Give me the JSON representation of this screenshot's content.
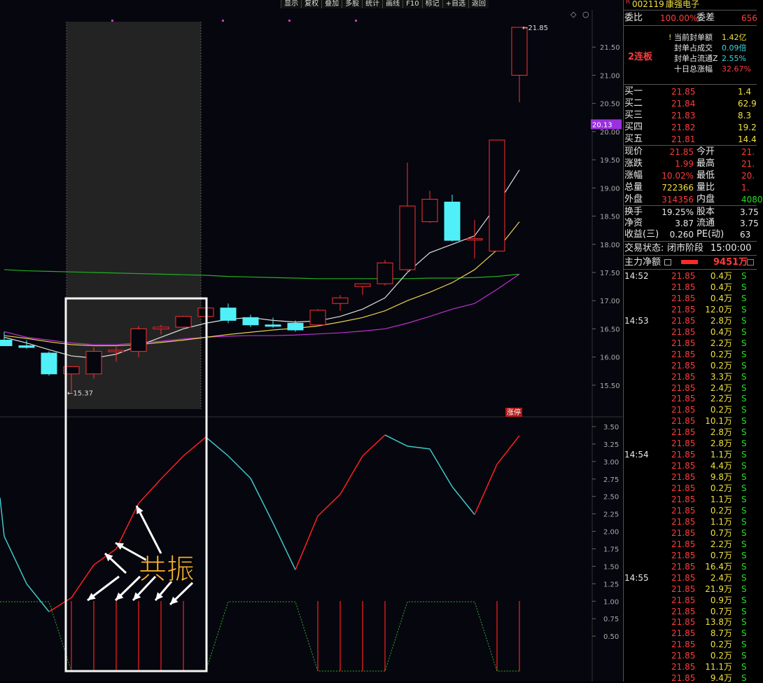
{
  "toolbar": {
    "items": [
      "显示",
      "复权",
      "叠加",
      "多股",
      "统计",
      "画线",
      "F10",
      "标记",
      "+自选",
      "返回"
    ]
  },
  "stock": {
    "code": "002119",
    "name": "康强电子",
    "tag": "R"
  },
  "side": {
    "wb_label": "委比",
    "wb_value": "100.00%",
    "wc_label": "委差",
    "wc_value": "656",
    "streak": "2连板",
    "seal": [
      {
        "label": "当前封单额",
        "value": "1.42亿",
        "color": "#f0e040",
        "prefix": "!"
      },
      {
        "label": "封单占成交",
        "value": "0.09倍",
        "color": "#3fd7e0",
        "prefix": ""
      },
      {
        "label": "封单占流通Z",
        "value": "2.55%",
        "color": "#3fd7e0",
        "prefix": ""
      },
      {
        "label": "十日总涨幅",
        "value": "32.67%",
        "color": "#ff3b3b",
        "prefix": ""
      }
    ],
    "bids": [
      {
        "label": "买一",
        "price": "21.85",
        "vol": "1.4"
      },
      {
        "label": "买二",
        "price": "21.84",
        "vol": "62.9"
      },
      {
        "label": "买三",
        "price": "21.83",
        "vol": "8.3"
      },
      {
        "label": "买四",
        "price": "21.82",
        "vol": "19.2"
      },
      {
        "label": "买五",
        "price": "21.81",
        "vol": "14.4"
      }
    ],
    "quote": [
      {
        "l1": "现价",
        "v1": "21.85",
        "c1": "#ff3b3b",
        "l2": "今开",
        "v2": "21.",
        "c2": "#ff3b3b"
      },
      {
        "l1": "涨跌",
        "v1": "1.99",
        "c1": "#ff3b3b",
        "l2": "最高",
        "v2": "21.",
        "c2": "#ff3b3b"
      },
      {
        "l1": "涨幅",
        "v1": "10.02%",
        "c1": "#ff3b3b",
        "l2": "最低",
        "v2": "20.",
        "c2": "#ff3b3b"
      },
      {
        "l1": "总量",
        "v1": "722366",
        "c1": "#f0e040",
        "l2": "量比",
        "v2": "1.",
        "c2": "#ff3b3b"
      },
      {
        "l1": "外盘",
        "v1": "314356",
        "c1": "#ff3b3b",
        "l2": "内盘",
        "v2": "4080",
        "c2": "#22e022"
      }
    ],
    "quote2": [
      {
        "l1": "换手",
        "v1": "19.25%",
        "l2": "股本",
        "v2": "3.75"
      },
      {
        "l1": "净资",
        "v1": "3.87",
        "l2": "流通",
        "v2": "3.75"
      },
      {
        "l1": "收益(三)",
        "v1": "0.260",
        "l2": "PE(动)",
        "v2": "63"
      }
    ],
    "status_label": "交易状态:",
    "status_value": "闭市阶段",
    "status_time": "15:00:00",
    "flow_label": "主力净额",
    "flow_value": "9451万",
    "ticks": [
      {
        "t": "14:52",
        "p": "21.85",
        "v": "0.4万",
        "s": "S"
      },
      {
        "t": "",
        "p": "21.85",
        "v": "0.4万",
        "s": "S"
      },
      {
        "t": "",
        "p": "21.85",
        "v": "0.4万",
        "s": "S"
      },
      {
        "t": "",
        "p": "21.85",
        "v": "12.0万",
        "s": "S"
      },
      {
        "t": "14:53",
        "p": "21.85",
        "v": "2.8万",
        "s": "S"
      },
      {
        "t": "",
        "p": "21.85",
        "v": "0.4万",
        "s": "S"
      },
      {
        "t": "",
        "p": "21.85",
        "v": "2.2万",
        "s": "S"
      },
      {
        "t": "",
        "p": "21.85",
        "v": "0.2万",
        "s": "S"
      },
      {
        "t": "",
        "p": "21.85",
        "v": "0.2万",
        "s": "S"
      },
      {
        "t": "",
        "p": "21.85",
        "v": "3.3万",
        "s": "S"
      },
      {
        "t": "",
        "p": "21.85",
        "v": "2.4万",
        "s": "S"
      },
      {
        "t": "",
        "p": "21.85",
        "v": "2.2万",
        "s": "S"
      },
      {
        "t": "",
        "p": "21.85",
        "v": "0.2万",
        "s": "S"
      },
      {
        "t": "",
        "p": "21.85",
        "v": "10.1万",
        "s": "S"
      },
      {
        "t": "",
        "p": "21.85",
        "v": "2.8万",
        "s": "S"
      },
      {
        "t": "",
        "p": "21.85",
        "v": "2.8万",
        "s": "S"
      },
      {
        "t": "14:54",
        "p": "21.85",
        "v": "1.1万",
        "s": "S"
      },
      {
        "t": "",
        "p": "21.85",
        "v": "4.4万",
        "s": "S"
      },
      {
        "t": "",
        "p": "21.85",
        "v": "9.8万",
        "s": "S"
      },
      {
        "t": "",
        "p": "21.85",
        "v": "0.2万",
        "s": "S"
      },
      {
        "t": "",
        "p": "21.85",
        "v": "1.1万",
        "s": "S"
      },
      {
        "t": "",
        "p": "21.85",
        "v": "0.2万",
        "s": "S"
      },
      {
        "t": "",
        "p": "21.85",
        "v": "1.1万",
        "s": "S"
      },
      {
        "t": "",
        "p": "21.85",
        "v": "0.7万",
        "s": "S"
      },
      {
        "t": "",
        "p": "21.85",
        "v": "2.2万",
        "s": "S"
      },
      {
        "t": "",
        "p": "21.85",
        "v": "0.7万",
        "s": "S"
      },
      {
        "t": "",
        "p": "21.85",
        "v": "16.4万",
        "s": "S"
      },
      {
        "t": "14:55",
        "p": "21.85",
        "v": "2.4万",
        "s": "S"
      },
      {
        "t": "",
        "p": "21.85",
        "v": "21.9万",
        "s": "S"
      },
      {
        "t": "",
        "p": "21.85",
        "v": "0.9万",
        "s": "S"
      },
      {
        "t": "",
        "p": "21.85",
        "v": "0.7万",
        "s": "S"
      },
      {
        "t": "",
        "p": "21.85",
        "v": "13.8万",
        "s": "S"
      },
      {
        "t": "",
        "p": "21.85",
        "v": "8.7万",
        "s": "S"
      },
      {
        "t": "",
        "p": "21.85",
        "v": "0.2万",
        "s": "S"
      },
      {
        "t": "",
        "p": "21.85",
        "v": "0.2万",
        "s": "S"
      },
      {
        "t": "",
        "p": "21.85",
        "v": "11.1万",
        "s": "S"
      },
      {
        "t": "",
        "p": "21.85",
        "v": "9.4万",
        "s": "S"
      }
    ]
  },
  "chart_data": [
    {
      "type": "candlestick",
      "y_ticks": [
        "15.50",
        "16.00",
        "16.50",
        "17.00",
        "17.50",
        "18.00",
        "18.50",
        "19.00",
        "19.50",
        "20.00",
        "20.50",
        "21.00",
        "21.50"
      ],
      "ylim": [
        15.2,
        21.95
      ],
      "marker_label": "20.13",
      "marker_value": 20.13,
      "high_label": "21.85",
      "low_label": "15.37",
      "limit_tag": "涨停",
      "candles": [
        {
          "o": 16.3,
          "h": 16.45,
          "l": 16.2,
          "c": 16.2
        },
        {
          "o": 16.2,
          "h": 16.3,
          "l": 16.15,
          "c": 16.17
        },
        {
          "o": 16.07,
          "h": 16.1,
          "l": 15.67,
          "c": 15.7
        },
        {
          "o": 15.7,
          "h": 15.83,
          "l": 15.37,
          "c": 15.83
        },
        {
          "o": 15.7,
          "h": 16.17,
          "l": 15.62,
          "c": 16.1
        },
        {
          "o": 16.1,
          "h": 16.18,
          "l": 15.92,
          "c": 16.12
        },
        {
          "o": 16.1,
          "h": 16.55,
          "l": 16.0,
          "c": 16.5
        },
        {
          "o": 16.5,
          "h": 16.57,
          "l": 16.4,
          "c": 16.53
        },
        {
          "o": 16.53,
          "h": 16.73,
          "l": 16.5,
          "c": 16.72
        },
        {
          "o": 16.72,
          "h": 16.9,
          "l": 16.7,
          "c": 16.87
        },
        {
          "o": 16.87,
          "h": 16.95,
          "l": 16.6,
          "c": 16.65
        },
        {
          "o": 16.7,
          "h": 16.75,
          "l": 16.53,
          "c": 16.57
        },
        {
          "o": 16.57,
          "h": 16.7,
          "l": 16.52,
          "c": 16.55
        },
        {
          "o": 16.6,
          "h": 16.65,
          "l": 16.45,
          "c": 16.48
        },
        {
          "o": 16.57,
          "h": 16.85,
          "l": 16.55,
          "c": 16.83
        },
        {
          "o": 16.95,
          "h": 17.1,
          "l": 16.82,
          "c": 17.05
        },
        {
          "o": 17.25,
          "h": 17.3,
          "l": 17.1,
          "c": 17.3
        },
        {
          "o": 17.3,
          "h": 17.72,
          "l": 17.27,
          "c": 17.67
        },
        {
          "o": 17.55,
          "h": 19.45,
          "l": 17.5,
          "c": 18.68
        },
        {
          "o": 18.4,
          "h": 18.95,
          "l": 18.38,
          "c": 18.8
        },
        {
          "o": 18.75,
          "h": 18.88,
          "l": 18.05,
          "c": 18.07
        },
        {
          "o": 18.08,
          "h": 18.43,
          "l": 17.75,
          "c": 18.1
        },
        {
          "o": 17.88,
          "h": 19.85,
          "l": 17.88,
          "c": 19.85
        },
        {
          "o": 21.0,
          "h": 21.85,
          "l": 20.52,
          "c": 21.85
        }
      ],
      "ma_white": [
        16.35,
        16.25,
        16.13,
        16.02,
        15.98,
        16.05,
        16.2,
        16.35,
        16.5,
        16.6,
        16.67,
        16.7,
        16.65,
        16.62,
        16.64,
        16.72,
        16.85,
        17.05,
        17.5,
        17.85,
        18.0,
        18.15,
        18.7,
        19.32
      ],
      "ma_yellow": [
        16.38,
        16.33,
        16.27,
        16.22,
        16.2,
        16.2,
        16.22,
        16.26,
        16.3,
        16.35,
        16.4,
        16.44,
        16.48,
        16.51,
        16.55,
        16.62,
        16.7,
        16.82,
        17.0,
        17.15,
        17.32,
        17.55,
        17.9,
        18.4
      ],
      "ma_magenta": [
        16.45,
        16.35,
        16.3,
        16.25,
        16.22,
        16.22,
        16.25,
        16.28,
        16.32,
        16.35,
        16.37,
        16.38,
        16.38,
        16.39,
        16.41,
        16.43,
        16.46,
        16.5,
        16.6,
        16.72,
        16.85,
        16.95,
        17.2,
        17.47
      ],
      "ma_green": [
        17.55,
        17.53,
        17.52,
        17.51,
        17.5,
        17.49,
        17.48,
        17.47,
        17.46,
        17.45,
        17.43,
        17.42,
        17.41,
        17.4,
        17.39,
        17.39,
        17.39,
        17.39,
        17.39,
        17.4,
        17.4,
        17.41,
        17.43,
        17.47
      ]
    },
    {
      "type": "line",
      "y_ticks": [
        "0.50",
        "0.75",
        "1.00",
        "1.25",
        "1.50",
        "1.75",
        "2.00",
        "2.25",
        "2.50",
        "2.75",
        "3.00",
        "3.25",
        "3.50"
      ],
      "ylim": [
        0,
        3.58
      ],
      "values": [
        1.93,
        1.25,
        0.85,
        1.05,
        1.52,
        1.75,
        2.4,
        2.75,
        3.08,
        3.35,
        3.08,
        2.76,
        2.12,
        1.45,
        2.22,
        2.53,
        3.08,
        3.38,
        3.22,
        3.18,
        2.64,
        2.24,
        2.96,
        3.37
      ],
      "flag": [
        1,
        1,
        1,
        0,
        0,
        0,
        0,
        0,
        0,
        0,
        1,
        1,
        1,
        1,
        0,
        0,
        0,
        0,
        1,
        1,
        1,
        1,
        0,
        0
      ],
      "annotation": "共振"
    }
  ]
}
